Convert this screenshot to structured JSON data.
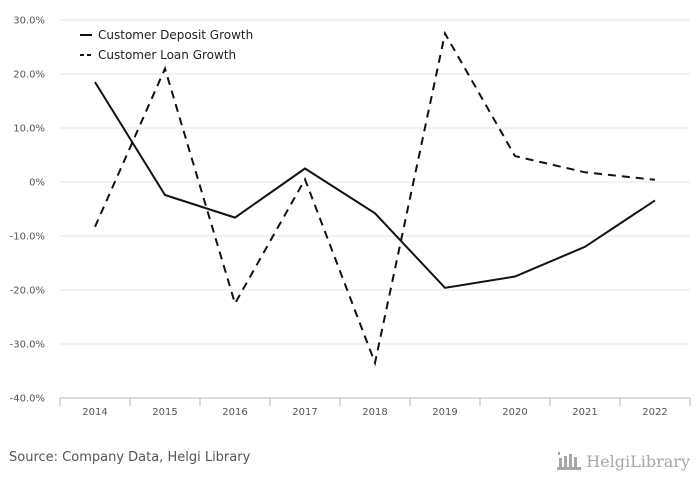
{
  "chart_data": {
    "type": "line",
    "categories": [
      "2014",
      "2015",
      "2016",
      "2017",
      "2018",
      "2019",
      "2020",
      "2021",
      "2022"
    ],
    "series": [
      {
        "name": "Customer Deposit Growth",
        "style": "solid",
        "color": "#111111",
        "values": [
          18.5,
          -2.4,
          -6.6,
          2.5,
          -5.8,
          -19.6,
          -17.5,
          -12.0,
          -3.4
        ]
      },
      {
        "name": "Customer Loan Growth",
        "style": "dashed",
        "color": "#111111",
        "values": [
          -8.3,
          21.0,
          -22.5,
          0.5,
          -33.5,
          27.5,
          4.8,
          1.8,
          0.4
        ]
      }
    ],
    "ylim": [
      -40,
      30
    ],
    "yticks": [
      30,
      20,
      10,
      0,
      -10,
      -20,
      -30,
      -40
    ],
    "ytick_labels": [
      "30.0%",
      "20.0%",
      "10.0%",
      "0%",
      "-10.0%",
      "-20.0%",
      "-30.0%",
      "-40.0%"
    ],
    "grid": true,
    "legend_position": "top-left",
    "title": "",
    "xlabel": "",
    "ylabel": ""
  },
  "footer": {
    "source": "Source: Company Data, Helgi Library",
    "brand": "HelgiLibrary"
  }
}
